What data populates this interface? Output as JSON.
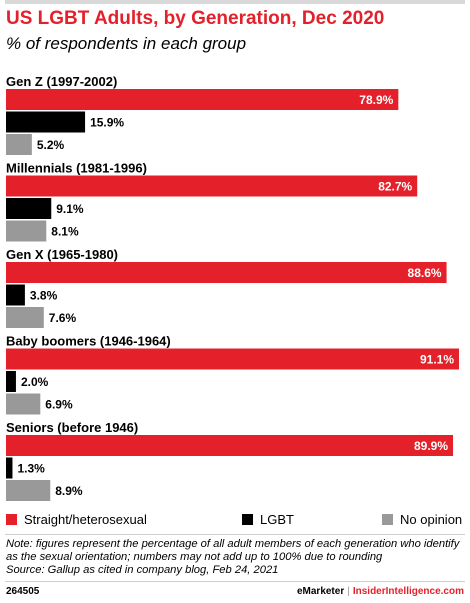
{
  "header": {
    "title": "US LGBT Adults, by Generation, Dec 2020",
    "subtitle": "% of respondents in each group"
  },
  "colors": {
    "straight": "#e4202b",
    "lgbt": "#000000",
    "no_opinion": "#999999",
    "title": "#e4202b"
  },
  "chart_data": {
    "type": "bar",
    "orientation": "horizontal",
    "categories": [
      "Gen Z (1997-2002)",
      "Millennials (1981-1996)",
      "Gen X (1965-1980)",
      "Baby boomers (1946-1964)",
      "Seniors (before 1946)"
    ],
    "series": [
      {
        "name": "Straight/heterosexual",
        "values": [
          78.9,
          82.7,
          88.6,
          91.1,
          89.9
        ],
        "labels": [
          "78.9%",
          "82.7%",
          "88.6%",
          "91.1%",
          "89.9%"
        ],
        "color": "#e4202b"
      },
      {
        "name": "LGBT",
        "values": [
          15.9,
          9.1,
          3.8,
          2.0,
          1.3
        ],
        "labels": [
          "15.9%",
          "9.1%",
          "3.8%",
          "2.0%",
          "1.3%"
        ],
        "color": "#000000"
      },
      {
        "name": "No opinion",
        "values": [
          5.2,
          8.1,
          7.6,
          6.9,
          8.9
        ],
        "labels": [
          "5.2%",
          "8.1%",
          "7.6%",
          "6.9%",
          "8.9%"
        ],
        "color": "#999999"
      }
    ],
    "xlim": [
      0,
      100
    ],
    "grid": false,
    "legend_position": "bottom"
  },
  "legend": {
    "items": [
      "Straight/heterosexual",
      "LGBT",
      "No opinion"
    ]
  },
  "note": {
    "line1": "Note: figures represent the percentage of all adult members of each generation who identify",
    "line2": "as the sexual orientation; numbers may not add up to 100% due to rounding",
    "line3": "Source: Gallup as cited in company blog, Feb 24, 2021"
  },
  "footer": {
    "id": "264505",
    "brand": "eMarketer",
    "brand2": "InsiderIntelligence.com"
  }
}
